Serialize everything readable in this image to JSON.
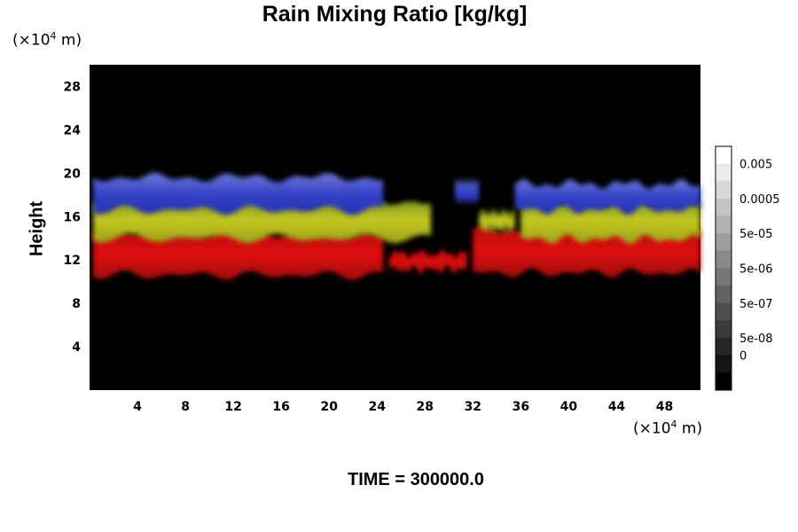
{
  "chart_data": {
    "type": "heatmap",
    "title": "Rain Mixing Ratio [kg/kg]",
    "xlabel": "",
    "ylabel": "Height",
    "x_unit": "(×10^4 m)",
    "y_unit": "(×10^4 m)",
    "xlim": [
      0,
      51
    ],
    "ylim": [
      0,
      30
    ],
    "xticks": [
      4,
      8,
      12,
      16,
      20,
      24,
      28,
      32,
      36,
      40,
      44,
      48
    ],
    "yticks": [
      4,
      8,
      12,
      16,
      20,
      24,
      28
    ],
    "colorbar": {
      "labels": [
        "0.005",
        "0.0005",
        "5e-05",
        "5e-06",
        "5e-07",
        "5e-08",
        "0"
      ],
      "levels": 14,
      "colormap": "grayscale"
    },
    "layers": [
      {
        "name": "upper",
        "color": "#2a36c8",
        "segments": [
          {
            "x0": 0.3,
            "x1": 24.5,
            "y0": 16.6,
            "y1": 19.6
          },
          {
            "x0": 30.5,
            "x1": 32.5,
            "y0": 17.4,
            "y1": 19.2
          },
          {
            "x0": 35.5,
            "x1": 51,
            "y0": 16.6,
            "y1": 19.0
          }
        ]
      },
      {
        "name": "middle",
        "color": "#b4c21e",
        "segments": [
          {
            "x0": 0.3,
            "x1": 28.5,
            "y0": 14.0,
            "y1": 17.4
          },
          {
            "x0": 32.5,
            "x1": 35.5,
            "y0": 14.8,
            "y1": 16.4
          },
          {
            "x0": 36.0,
            "x1": 51,
            "y0": 13.9,
            "y1": 17.4
          }
        ]
      },
      {
        "name": "lower",
        "color": "#cc0a0a",
        "segments": [
          {
            "x0": 0.3,
            "x1": 24.5,
            "y0": 10.6,
            "y1": 14.5
          },
          {
            "x0": 25.0,
            "x1": 31.5,
            "y0": 11.1,
            "y1": 12.6
          },
          {
            "x0": 32.0,
            "x1": 51,
            "y0": 10.8,
            "y1": 14.8
          }
        ]
      }
    ],
    "background": "#000000",
    "time_label": "TIME = 300000.0"
  }
}
